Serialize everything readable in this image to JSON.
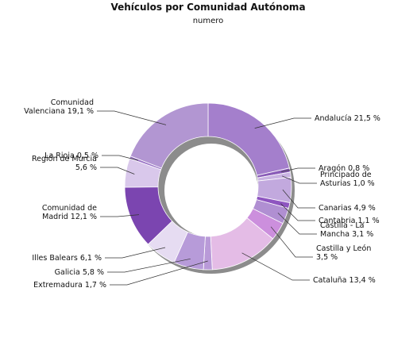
{
  "chart_data": {
    "type": "pie",
    "variant": "donut",
    "title": "Vehículos por Comunidad Autónoma",
    "subtitle": "numero",
    "unit": "%",
    "legend": "none",
    "slices": [
      {
        "name": "Andalucía",
        "value": 21.5,
        "label_lines": [
          "Andalucía 21,5 %"
        ],
        "color": "#a47fcc"
      },
      {
        "name": "Aragón",
        "value": 0.8,
        "label_lines": [
          "Aragón 0,8 %"
        ],
        "color": "#8a5cb8"
      },
      {
        "name": "Principado de Asturias",
        "value": 1.0,
        "label_lines": [
          "Principado de",
          "Asturias 1,0 %"
        ],
        "color": "#c9b3e2"
      },
      {
        "name": "Canarias",
        "value": 4.9,
        "label_lines": [
          "Canarias 4,9 %"
        ],
        "color": "#c2a9de"
      },
      {
        "name": "Cantabria",
        "value": 1.1,
        "label_lines": [
          "Cantabria 1,1 %"
        ],
        "color": "#8e55c0"
      },
      {
        "name": "Castilla - La Mancha",
        "value": 3.1,
        "label_lines": [
          "Castilla - La",
          "Mancha 3,1 %"
        ],
        "color": "#b08fd2"
      },
      {
        "name": "Castilla y León",
        "value": 3.5,
        "label_lines": [
          "Castilla y León",
          "3,5 %"
        ],
        "color": "#cc8fdd"
      },
      {
        "name": "Cataluña",
        "value": 13.4,
        "label_lines": [
          "Cataluña 13,4 %"
        ],
        "color": "#e4bce6"
      },
      {
        "name": "Extremadura",
        "value": 1.7,
        "label_lines": [
          "Extremadura 1,7 %"
        ],
        "color": "#b99ad8"
      },
      {
        "name": "Galicia",
        "value": 5.8,
        "label_lines": [
          "Galicia 5,8 %"
        ],
        "color": "#b79bd9"
      },
      {
        "name": "Illes Balears",
        "value": 6.1,
        "label_lines": [
          "Illes Balears 6,1 %"
        ],
        "color": "#e6dcf2"
      },
      {
        "name": "Comunidad de Madrid",
        "value": 12.1,
        "label_lines": [
          "Comunidad de",
          "Madrid 12,1 %"
        ],
        "color": "#7b45b0"
      },
      {
        "name": "Región de Murcia",
        "value": 5.6,
        "label_lines": [
          "Región de Murcia",
          "5,6 %"
        ],
        "color": "#d9c8eb"
      },
      {
        "name": "La Rioja",
        "value": 0.5,
        "label_lines": [
          "La Rioja 0,5 %"
        ],
        "color": "#9a74c6"
      },
      {
        "name": "Comunidad Valenciana",
        "value": 19.1,
        "label_lines": [
          "Comunidad",
          "Valenciana 19,1 %"
        ],
        "color": "#b296d2"
      }
    ]
  }
}
